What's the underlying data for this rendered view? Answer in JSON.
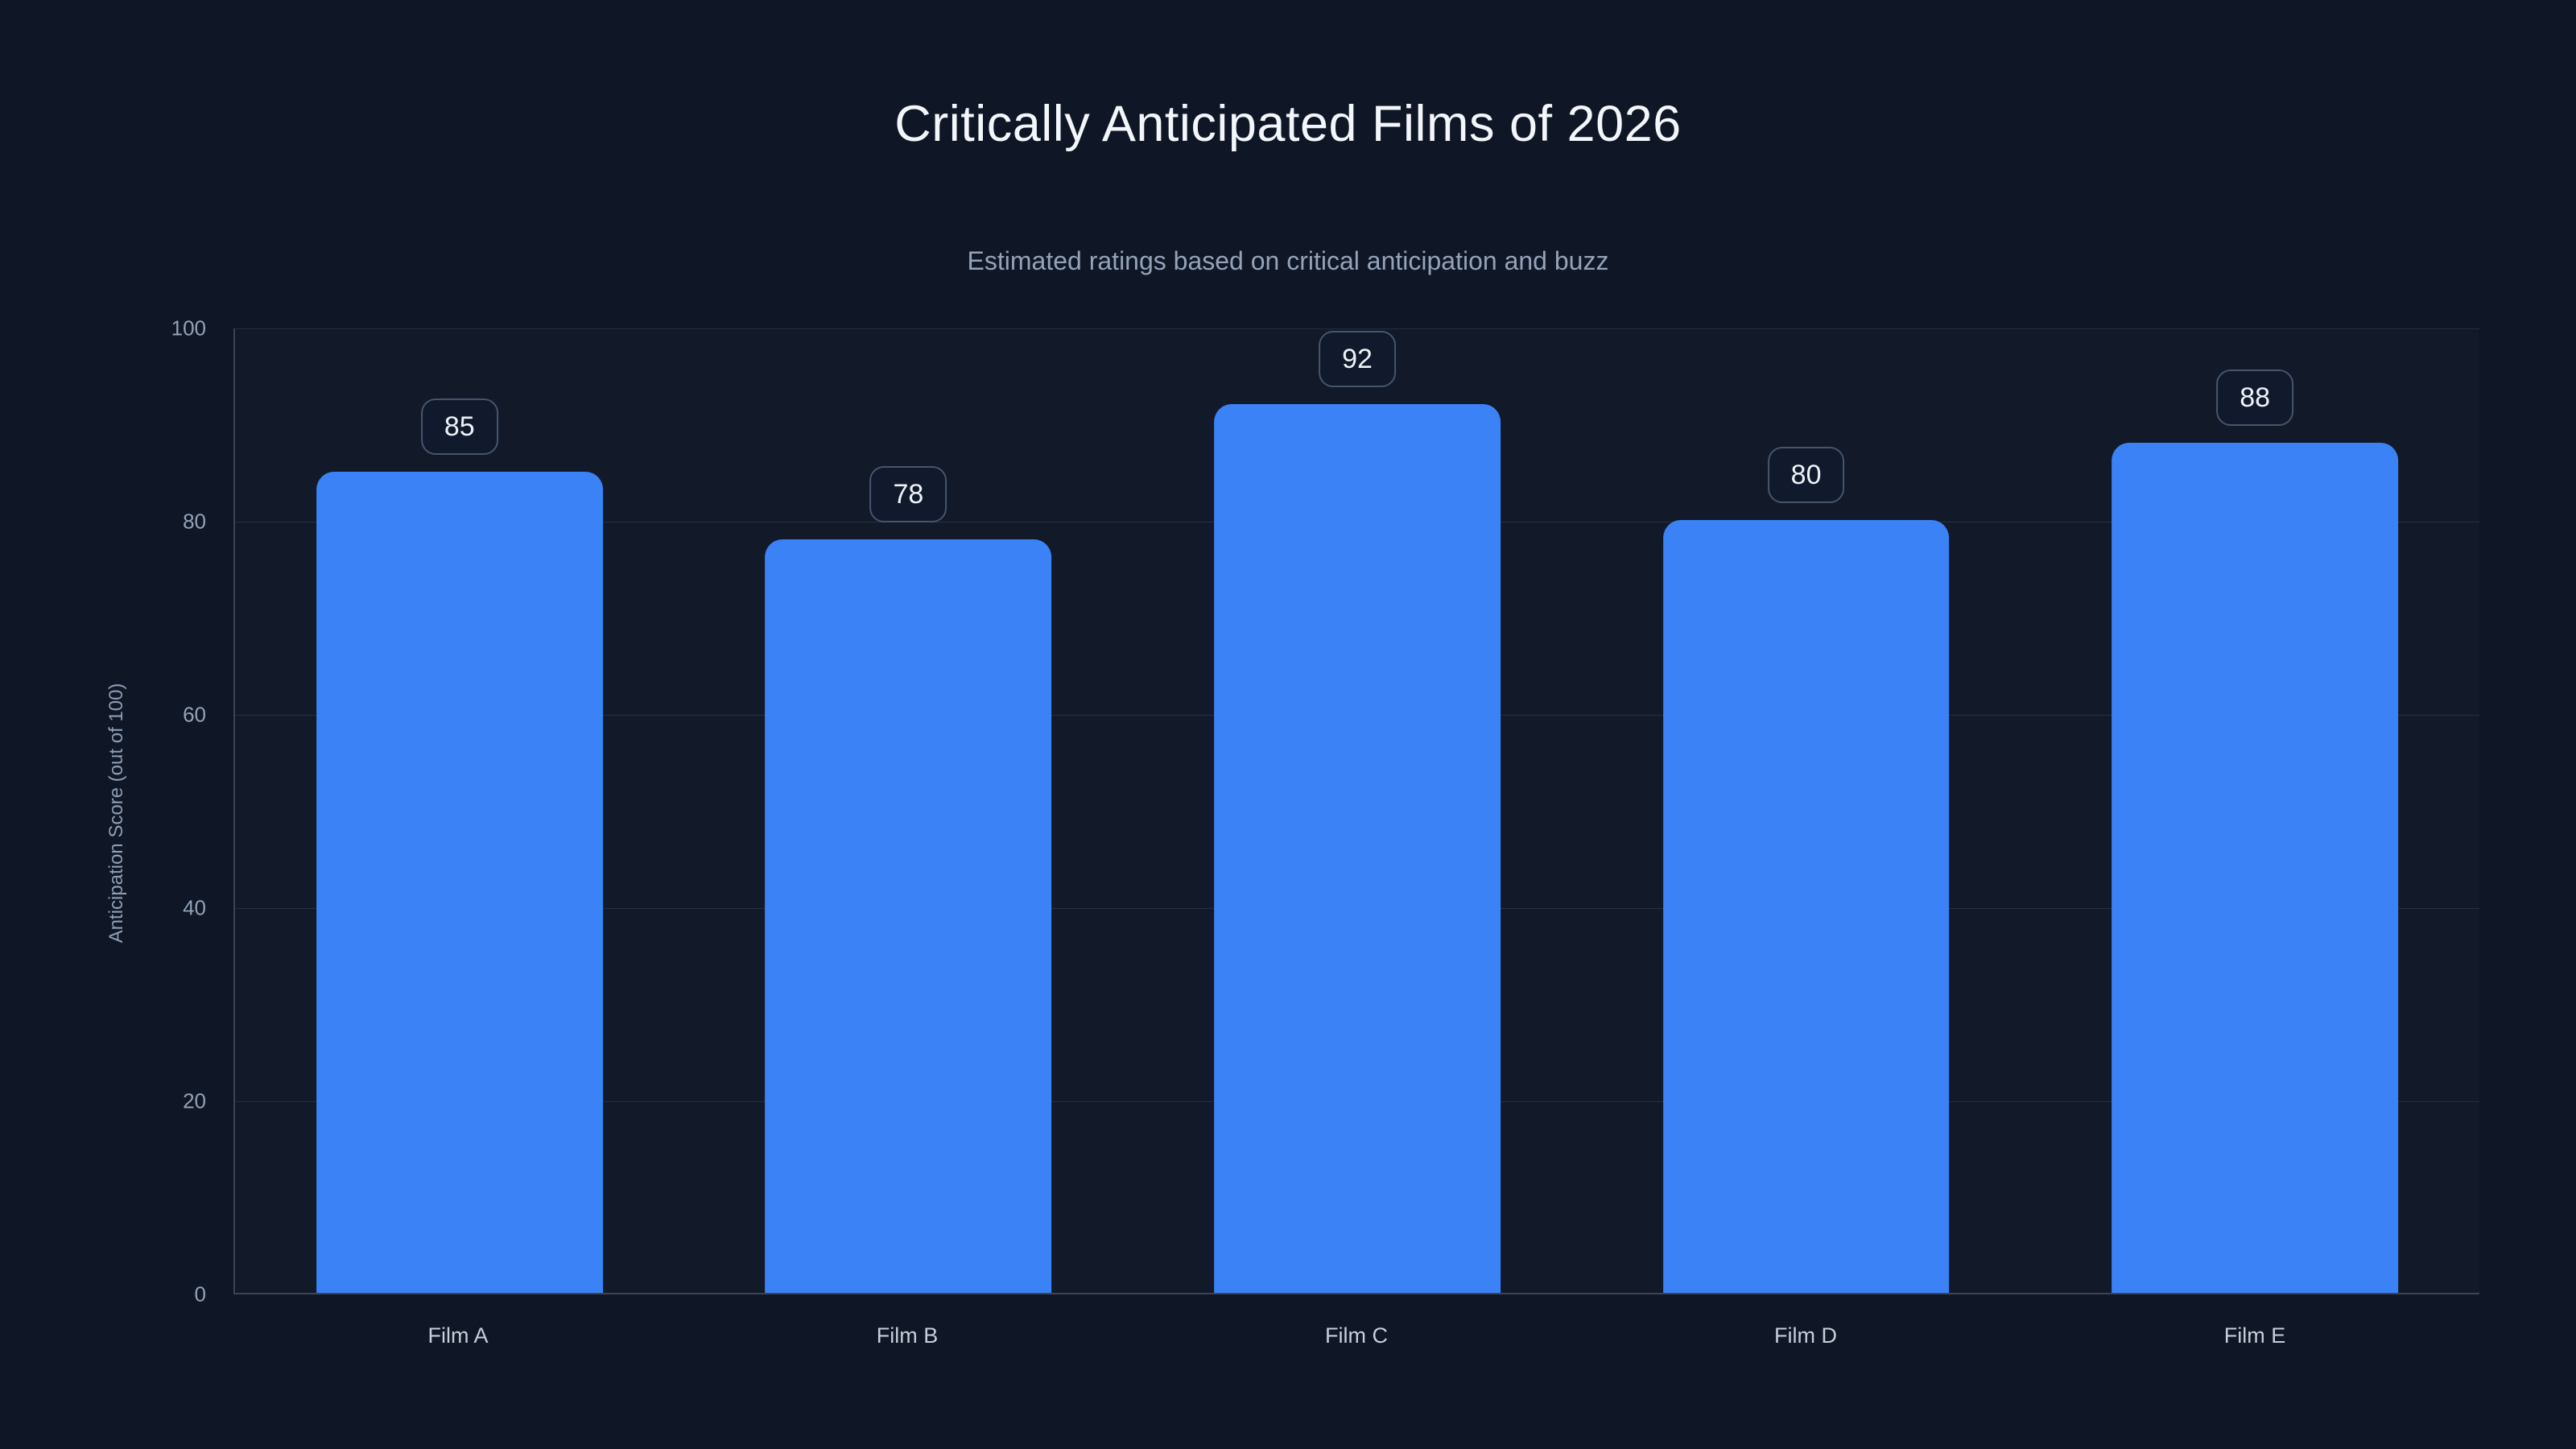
{
  "chart_data": {
    "type": "bar",
    "title": "Critically Anticipated Films of 2026",
    "subtitle": "Estimated ratings based on critical anticipation and buzz",
    "categories": [
      "Film A",
      "Film B",
      "Film C",
      "Film D",
      "Film E"
    ],
    "values": [
      85,
      78,
      92,
      80,
      88
    ],
    "value_labels": true,
    "xlabel": "",
    "ylabel": "Anticipation Score (out of 100)",
    "ylim": [
      0,
      100
    ],
    "yticks": [
      0,
      20,
      40,
      60,
      80,
      100
    ],
    "grid": true,
    "legend": false,
    "colors": {
      "background": "#0f1626",
      "bar": "#3b82f6",
      "title_text": "#f3f6fa",
      "subtitle_text": "#94a3b8",
      "tick_text": "#93a2b6",
      "category_text": "#c6ceda",
      "gridline": "#2b3648",
      "badge_border": "#46556c",
      "badge_background": "#111a2c",
      "badge_text": "#eef2f8"
    }
  }
}
